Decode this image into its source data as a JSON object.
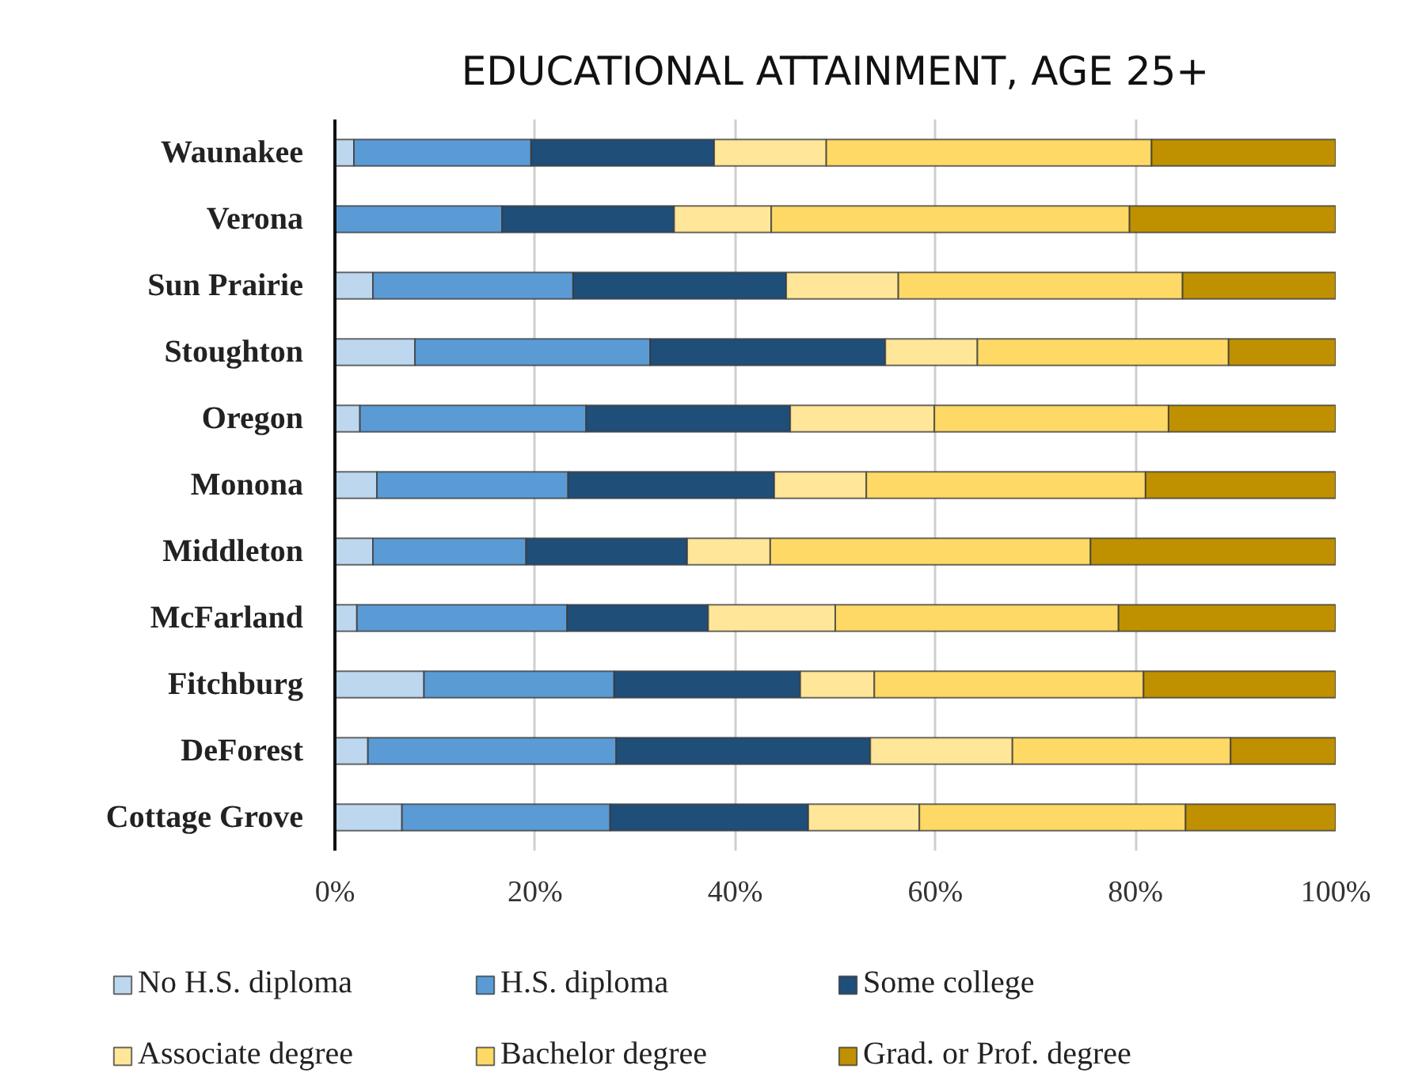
{
  "chart_data": {
    "type": "bar",
    "orientation": "horizontal",
    "stacked": true,
    "title": "EDUCATIONAL ATTAINMENT, AGE 25+",
    "categories": [
      "Waunakee",
      "Verona",
      "Sun Prairie",
      "Stoughton",
      "Oregon",
      "Monona",
      "Middleton",
      "McFarland",
      "Fitchburg",
      "DeForest",
      "Cottage Grove"
    ],
    "series": [
      {
        "name": "No H.S. diploma",
        "color": "#bdd7ee",
        "values": [
          1.9,
          0,
          3.8,
          8.0,
          2.5,
          4.2,
          3.8,
          2.2,
          8.9,
          3.3,
          6.7
        ]
      },
      {
        "name": "H.S. diploma",
        "color": "#5b9bd5",
        "values": [
          17.7,
          16.7,
          20.0,
          23.5,
          22.6,
          19.1,
          15.3,
          21.0,
          19.0,
          24.8,
          20.8
        ]
      },
      {
        "name": "Some college",
        "color": "#1f4e79",
        "values": [
          18.3,
          17.2,
          21.3,
          23.5,
          20.4,
          20.6,
          16.1,
          14.1,
          18.6,
          25.4,
          19.8
        ]
      },
      {
        "name": "Associate degree",
        "color": "#ffe699",
        "values": [
          11.2,
          9.7,
          11.2,
          9.2,
          14.4,
          9.2,
          8.3,
          12.7,
          7.4,
          14.2,
          11.1
        ]
      },
      {
        "name": "Bachelor degree",
        "color": "#ffd966",
        "values": [
          32.5,
          35.8,
          28.4,
          25.1,
          23.4,
          27.9,
          32.0,
          28.3,
          26.9,
          21.8,
          26.6
        ]
      },
      {
        "name": "Grad. or Prof. degree",
        "color": "#bf9000",
        "values": [
          18.4,
          20.6,
          15.3,
          10.7,
          16.7,
          19.0,
          24.5,
          21.7,
          19.2,
          10.5,
          15.0
        ]
      }
    ],
    "xlim": [
      0,
      100
    ],
    "xticks": [
      {
        "value": 0,
        "label": "0%"
      },
      {
        "value": 20,
        "label": "20%"
      },
      {
        "value": 40,
        "label": "40%"
      },
      {
        "value": 60,
        "label": "60%"
      },
      {
        "value": 80,
        "label": "80%"
      },
      {
        "value": 100,
        "label": "100%"
      }
    ],
    "grid": "x",
    "legend": "bottom"
  }
}
